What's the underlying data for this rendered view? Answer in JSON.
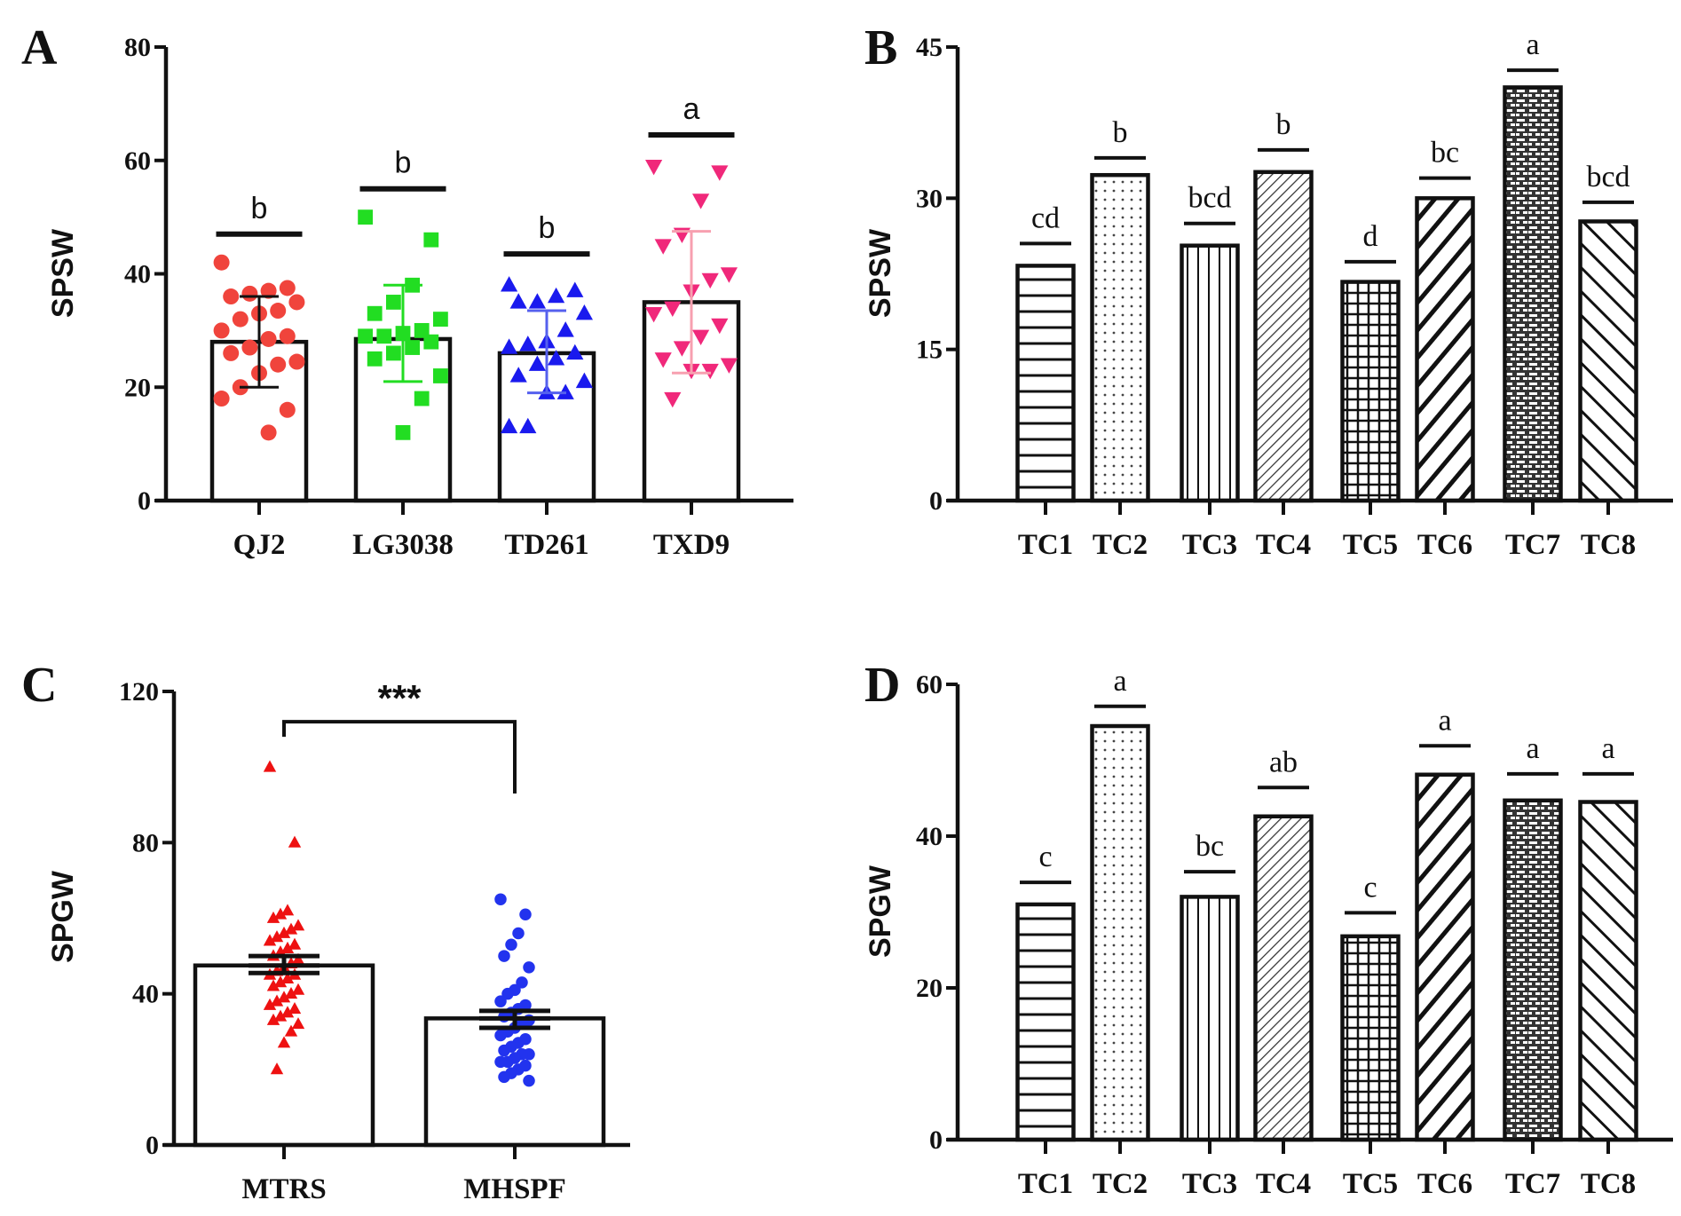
{
  "chart_data": [
    {
      "panel": "A",
      "type": "bar",
      "ylabel": "SPSW",
      "ylim": [
        0,
        80
      ],
      "yticks": [
        "0",
        "20",
        "40",
        "60",
        "80"
      ],
      "categories": [
        "QJ2",
        "LG3038",
        "TD261",
        "TXD9"
      ],
      "values": [
        28,
        28.5,
        26,
        35
      ],
      "error_low": [
        20,
        21,
        19,
        22.5
      ],
      "error_high": [
        36,
        38,
        33.5,
        47.5
      ],
      "significance": [
        "b",
        "b",
        "b",
        "a"
      ],
      "significance_level": [
        47,
        55,
        43.5,
        64.5
      ],
      "point_colors": [
        "#f0443c",
        "#22dd22",
        "#1a1aee",
        "#f0287a"
      ],
      "errorbar_colors": [
        "#111111",
        "#22dd22",
        "#5560ee",
        "#f7a0b0"
      ],
      "point_markers": [
        "circle",
        "square",
        "triangle-up",
        "triangle-down"
      ],
      "points": [
        [
          42,
          37.5,
          37,
          36.5,
          36,
          35,
          33.5,
          33,
          32,
          30,
          29,
          28.5,
          27,
          26,
          24.5,
          24,
          22.5,
          20,
          18,
          16,
          12
        ],
        [
          50,
          46,
          38,
          35,
          33,
          32,
          30,
          29.5,
          29,
          29,
          28,
          27,
          26,
          25,
          22,
          18,
          12
        ],
        [
          38,
          37,
          36,
          35,
          35,
          33,
          30,
          28,
          27.5,
          27,
          26,
          25,
          24,
          22,
          21,
          19,
          19,
          13,
          13
        ],
        [
          59,
          58,
          53,
          47,
          45,
          40,
          39,
          37,
          34,
          33,
          31,
          29,
          27,
          25,
          24,
          23,
          23,
          18
        ]
      ]
    },
    {
      "panel": "B",
      "type": "bar",
      "ylabel": "SPSW",
      "ylim": [
        0,
        45
      ],
      "yticks": [
        "0",
        "15",
        "30",
        "45"
      ],
      "categories": [
        "TC1",
        "TC2",
        "TC3",
        "TC4",
        "TC5",
        "TC6",
        "TC7",
        "TC8"
      ],
      "values": [
        23.3,
        32.3,
        25.3,
        32.6,
        21.7,
        30,
        41,
        27.7
      ],
      "significance": [
        "cd",
        "b",
        "bcd",
        "b",
        "d",
        "bc",
        "a",
        "bcd"
      ],
      "significance_level": [
        25.5,
        34,
        27.5,
        34.8,
        23.7,
        32,
        42.7,
        29.6
      ],
      "patterns": [
        "horizontal-lines",
        "dots",
        "vertical-lines",
        "thin-diagonal",
        "grid",
        "thick-diagonal-up",
        "brick",
        "thick-diagonal-down"
      ]
    },
    {
      "panel": "C",
      "type": "bar",
      "ylabel": "SPGW",
      "ylim": [
        0,
        120
      ],
      "yticks": [
        "0",
        "40",
        "80",
        "120"
      ],
      "categories": [
        "MTRS",
        "MHSPF"
      ],
      "values": [
        47.5,
        33.5
      ],
      "error_low": [
        45.5,
        31
      ],
      "error_high": [
        50,
        35.5
      ],
      "significance_text": "***",
      "bracket_level": 112,
      "bracket_drops": [
        108,
        93
      ],
      "point_colors": [
        "#ee1111",
        "#2233ee"
      ],
      "point_markers": [
        "triangle-up",
        "circle"
      ],
      "points": [
        [
          100,
          80,
          62,
          61,
          60,
          58,
          57,
          56,
          55,
          54,
          53,
          52,
          51,
          50,
          49,
          48,
          47,
          46,
          45,
          45,
          44,
          43,
          42,
          41,
          40,
          39,
          38,
          37,
          36,
          35,
          34,
          33,
          32,
          30,
          27,
          20
        ],
        [
          65,
          61,
          56,
          53,
          50,
          47,
          43,
          41,
          40,
          38,
          37,
          36,
          35,
          34,
          33,
          32,
          31,
          30,
          29,
          28,
          27,
          26,
          25,
          24,
          24,
          23,
          22,
          22,
          21,
          20,
          19,
          18,
          17
        ]
      ]
    },
    {
      "panel": "D",
      "type": "bar",
      "ylabel": "SPGW",
      "ylim": [
        0,
        60
      ],
      "yticks": [
        "0",
        "20",
        "40",
        "60"
      ],
      "categories": [
        "TC1",
        "TC2",
        "TC3",
        "TC4",
        "TC5",
        "TC6",
        "TC7",
        "TC8"
      ],
      "values": [
        31,
        54.5,
        32,
        42.6,
        26.8,
        48.1,
        44.7,
        44.5
      ],
      "significance": [
        "c",
        "a",
        "bc",
        "ab",
        "c",
        "a",
        "a",
        "a"
      ],
      "significance_level": [
        33.9,
        57.1,
        35.3,
        46.4,
        29.9,
        51.9,
        48.2,
        48.2
      ],
      "patterns": [
        "horizontal-lines",
        "dots",
        "vertical-lines",
        "thin-diagonal",
        "grid",
        "thick-diagonal-up",
        "brick",
        "thick-diagonal-down"
      ]
    }
  ]
}
